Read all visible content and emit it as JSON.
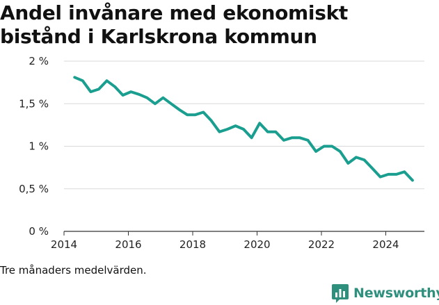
{
  "chart_data": {
    "type": "line",
    "title": "Andel invånare med ekonomiskt bistånd i Karlskrona kommun",
    "xlabel": "",
    "ylabel": "",
    "xlim": [
      2014,
      2025.2
    ],
    "ylim": [
      0,
      2
    ],
    "x_ticks": [
      2014,
      2016,
      2018,
      2020,
      2022,
      2024
    ],
    "x_tick_labels": [
      "2014",
      "2016",
      "2018",
      "2020",
      "2022",
      "2024"
    ],
    "y_ticks": [
      0,
      0.5,
      1,
      1.5,
      2
    ],
    "y_tick_labels": [
      "0 %",
      "0,5 %",
      "1 %",
      "1,5 %",
      "2 %"
    ],
    "grid": true,
    "line_color": "#1a9e8f",
    "series": [
      {
        "name": "Andel invånare med ekonomiskt bistånd",
        "x": [
          2014.33,
          2014.58,
          2014.83,
          2015.08,
          2015.33,
          2015.58,
          2015.83,
          2016.08,
          2016.33,
          2016.58,
          2016.83,
          2017.08,
          2017.33,
          2017.58,
          2017.83,
          2018.08,
          2018.33,
          2018.58,
          2018.83,
          2019.08,
          2019.33,
          2019.58,
          2019.83,
          2020.08,
          2020.33,
          2020.58,
          2020.83,
          2021.08,
          2021.33,
          2021.58,
          2021.83,
          2022.08,
          2022.33,
          2022.58,
          2022.83,
          2023.08,
          2023.33,
          2023.58,
          2023.83,
          2024.08,
          2024.33,
          2024.58,
          2024.83
        ],
        "values": [
          1.81,
          1.77,
          1.64,
          1.67,
          1.77,
          1.7,
          1.6,
          1.64,
          1.61,
          1.57,
          1.5,
          1.57,
          1.5,
          1.43,
          1.37,
          1.37,
          1.4,
          1.3,
          1.17,
          1.2,
          1.24,
          1.2,
          1.1,
          1.27,
          1.17,
          1.17,
          1.07,
          1.1,
          1.1,
          1.07,
          0.94,
          1.0,
          1.0,
          0.94,
          0.8,
          0.87,
          0.84,
          0.74,
          0.64,
          0.67,
          0.67,
          0.7,
          0.6
        ]
      }
    ]
  },
  "note": "Tre månaders medelvärden.",
  "brand": {
    "name": "Newsworthy",
    "color": "#2f8f7d",
    "icon": "bar-chart-icon"
  }
}
